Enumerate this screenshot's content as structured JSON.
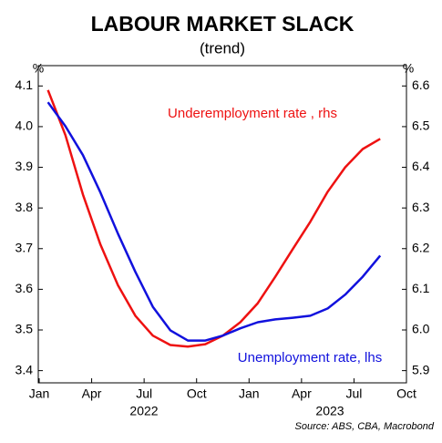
{
  "chart_data": {
    "type": "line",
    "title": "LABOUR MARKET SLACK",
    "subtitle": "(trend)",
    "y_unit": "%",
    "y2_unit": "%",
    "source": "Source: ABS, CBA, Macrobond",
    "x": [
      "2022-01",
      "2022-02",
      "2022-03",
      "2022-04",
      "2022-05",
      "2022-06",
      "2022-07",
      "2022-08",
      "2022-09",
      "2022-10",
      "2022-11",
      "2022-12",
      "2023-01",
      "2023-02",
      "2023-03",
      "2023-04",
      "2023-05",
      "2023-06",
      "2023-07",
      "2023-08"
    ],
    "xlim": [
      "2022-01",
      "2023-10"
    ],
    "xticks": [
      {
        "value": "2022-01",
        "label": "Jan"
      },
      {
        "value": "2022-04",
        "label": "Apr"
      },
      {
        "value": "2022-07",
        "label": "Jul"
      },
      {
        "value": "2022-10",
        "label": "Oct"
      },
      {
        "value": "2023-01",
        "label": "Jan"
      },
      {
        "value": "2023-04",
        "label": "Apr"
      },
      {
        "value": "2023-07",
        "label": "Jul"
      },
      {
        "value": "2023-10",
        "label": "Oct"
      }
    ],
    "year_labels": [
      "2022",
      "2023"
    ],
    "ylim": [
      3.37,
      4.15
    ],
    "yticks": [
      3.4,
      3.5,
      3.6,
      3.7,
      3.8,
      3.9,
      {
        "value": 4,
        "label": "4.0"
      },
      4.1
    ],
    "y2lim": [
      5.87,
      6.65
    ],
    "y2ticks": [
      5.9,
      {
        "value": 6,
        "label": "6.0"
      },
      6.1,
      6.2,
      6.3,
      6.4,
      6.5,
      6.6
    ],
    "series": [
      {
        "name": "Underemployment rate , rhs",
        "color": "#ee1111",
        "axis": "y2",
        "values": [
          6.59,
          6.479,
          6.333,
          6.21,
          6.11,
          6.035,
          5.986,
          5.963,
          5.959,
          5.965,
          5.986,
          6.019,
          6.066,
          6.131,
          6.199,
          6.266,
          6.34,
          6.4,
          6.445,
          6.47
        ]
      },
      {
        "name": "Unemployment rate, lhs",
        "color": "#1111dd",
        "axis": "y",
        "values": [
          4.06,
          4.001,
          3.93,
          3.838,
          3.737,
          3.643,
          3.557,
          3.499,
          3.474,
          3.474,
          3.486,
          3.504,
          3.519,
          3.526,
          3.53,
          3.535,
          3.553,
          3.587,
          3.631,
          3.683
        ]
      }
    ]
  }
}
